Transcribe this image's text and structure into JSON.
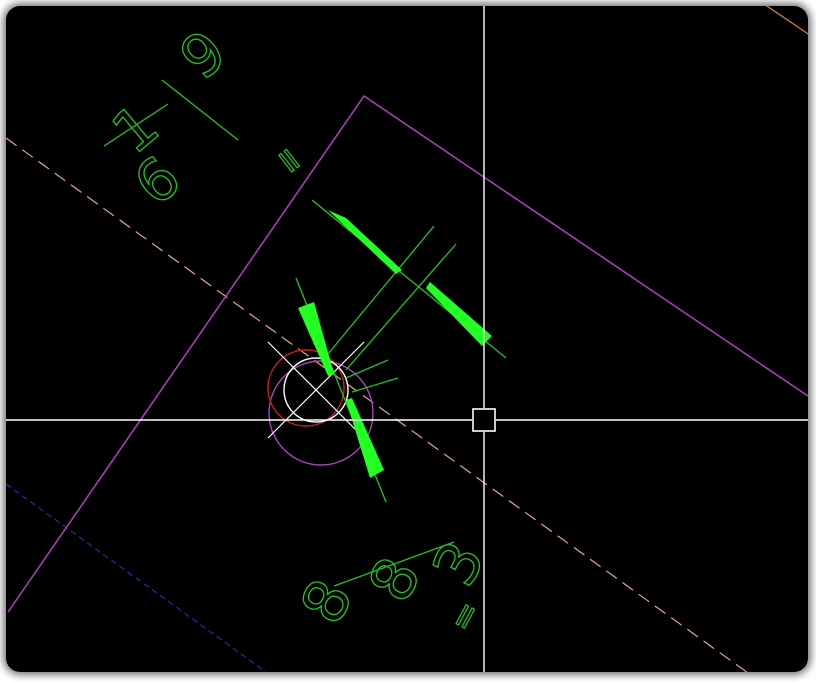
{
  "dimension_text_top": {
    "whole": "1",
    "numerator": "9",
    "denominator": "6",
    "suffix": "="
  },
  "dimension_text_bottom": {
    "whole": "8",
    "numerator": "3",
    "denominator": "8",
    "suffix": "="
  },
  "colors": {
    "background": "#000000",
    "crosshair": "#ffffff",
    "dimension": "#22c522",
    "arrowhead": "#22ff22",
    "wall_outline": "#b23fc0",
    "center_line": "#e3a39a",
    "hidden_line": "#2a2aa8",
    "orange_line": "#e08a3a",
    "red_circle": "#c82020",
    "magenta_circle": "#a646b6"
  },
  "icons": {
    "crosshair": "cad-crosshair-cursor-icon",
    "pickbox": "pickbox-square-icon",
    "snap_marker": "center-snap-x-icon"
  }
}
